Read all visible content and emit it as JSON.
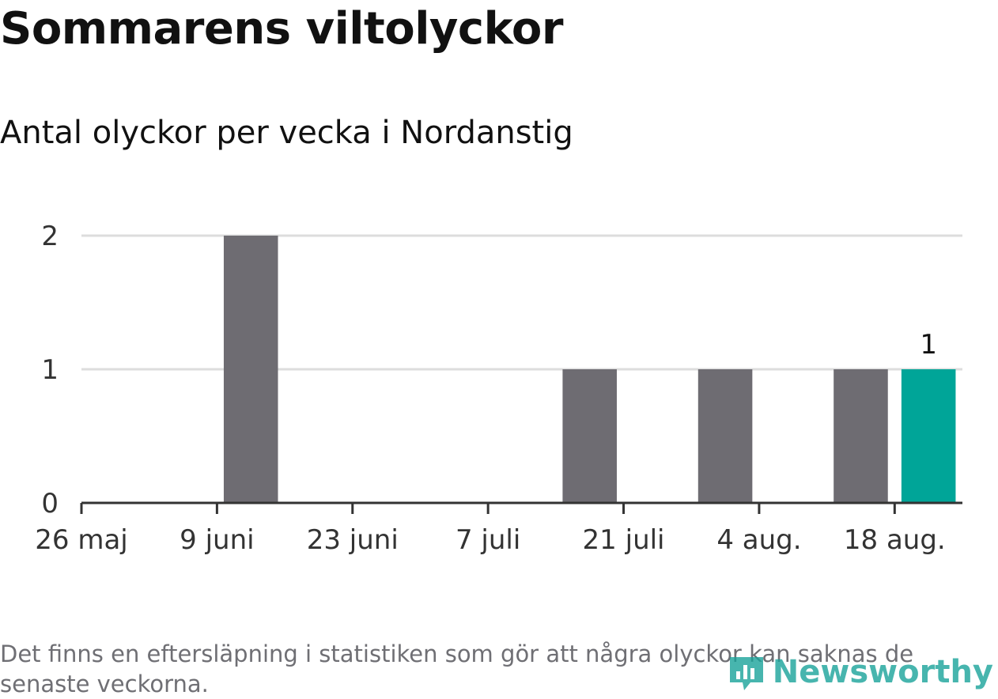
{
  "title": "Sommarens viltolyckor",
  "subtitle": "Antal olyckor per vecka i Nordanstig",
  "footnote": "Det finns en eftersläpning i statistiken som gör att några olyckor kan saknas de senaste veckorna.",
  "logo": {
    "text": "Newsworthy",
    "icon": "bar-chart-speech-bubble-icon"
  },
  "colors": {
    "bar": "#6e6c72",
    "highlight": "#00a598",
    "grid": "#dddddd",
    "axis": "#333333"
  },
  "chart_data": {
    "type": "bar",
    "x": [
      "26 maj",
      "2 juni",
      "9 juni",
      "16 juni",
      "23 juni",
      "30 juni",
      "7 juli",
      "14 juli",
      "21 juli",
      "28 juli",
      "4 aug.",
      "11 aug.",
      "18 aug."
    ],
    "values": [
      0,
      0,
      2,
      0,
      0,
      0,
      0,
      1,
      0,
      1,
      0,
      1,
      1
    ],
    "tick_labels": [
      "26 maj",
      "9 juni",
      "23 juni",
      "7 juli",
      "21 juli",
      "4 aug.",
      "18 aug."
    ],
    "yticks": [
      0,
      1,
      2
    ],
    "ylim": [
      0,
      2
    ],
    "highlight_index": 12,
    "data_labels": [
      {
        "index": 12,
        "text": "1"
      }
    ],
    "grid": true,
    "legend": "none"
  }
}
